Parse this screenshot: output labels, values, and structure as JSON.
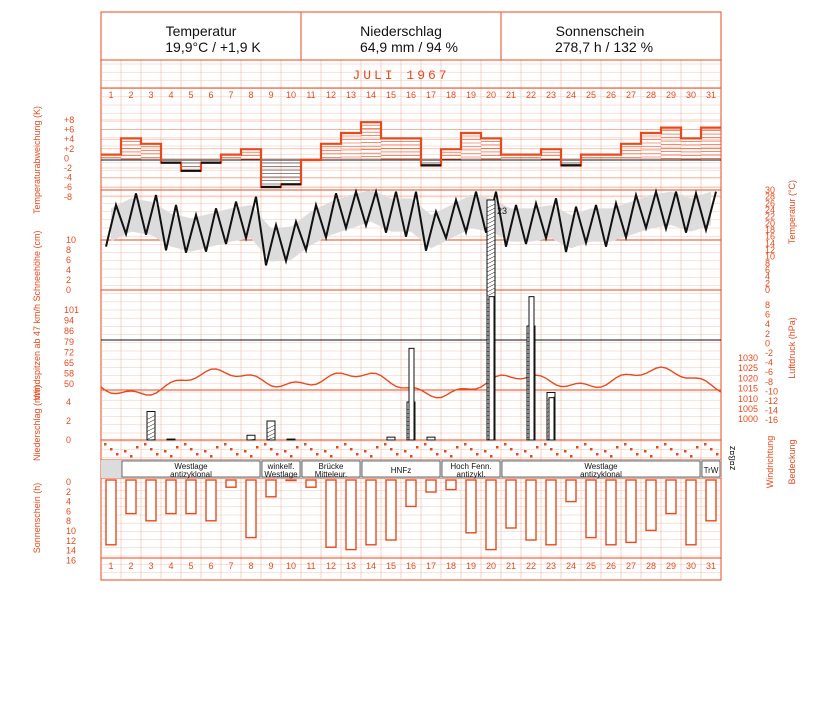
{
  "header": {
    "temperatur_title": "Temperatur",
    "temperatur_value": "19,9°C / +1,9 K",
    "niederschlag_title": "Niederschlag",
    "niederschlag_value": "64,9 mm / 94 %",
    "sonnenschein_title": "Sonnenschein",
    "sonnenschein_value": "278,7 h / 132 %"
  },
  "month_label": "JULI 1967",
  "axis_labels": {
    "temp_dev": "Temperaturabweichung (K)",
    "snow": "Schneehöhe (cm)",
    "wind": "Windspitzen ab 47 km/h",
    "precip": "Niederschlag (mm)",
    "sun": "Sonnenschein (h)",
    "temperature": "Temperatur (°C)",
    "pressure": "Luftdruck (hPa)",
    "wind_dir": "Windrichtung",
    "cloud": "Bedeckung",
    "wind_dir_marks": "z¤ß¤z"
  },
  "colors": {
    "accent": "#e8491d",
    "grid": "#f1b6a3",
    "band": "#dcdcdc",
    "text": "#111111"
  },
  "chart_data": {
    "type": "climate-diagram",
    "days": [
      1,
      2,
      3,
      4,
      5,
      6,
      7,
      8,
      9,
      10,
      11,
      12,
      13,
      14,
      15,
      16,
      17,
      18,
      19,
      20,
      21,
      22,
      23,
      24,
      25,
      26,
      27,
      28,
      29,
      30,
      31
    ],
    "temp_deviation": {
      "ticks": [
        "+8",
        "+6",
        "+4",
        "+2",
        "0",
        "-2",
        "-4",
        "-6",
        "-8"
      ],
      "values": [
        1,
        4,
        3,
        -0.5,
        -2,
        -0.5,
        1,
        2,
        -5,
        -4.5,
        0,
        3,
        5,
        7,
        4,
        4,
        -1,
        2,
        5,
        4,
        1,
        1,
        2,
        -1,
        1,
        1,
        3,
        5,
        6,
        4,
        6
      ]
    },
    "temperature": {
      "ticks": [
        "30",
        "28",
        "26",
        "24",
        "22",
        "20",
        "18",
        "16",
        "14",
        "12",
        "10",
        "8",
        "6",
        "4",
        "2",
        "0"
      ],
      "ylim": [
        0,
        30
      ],
      "extreme_label": "23"
    },
    "snow": {
      "ticks": [
        "10",
        "8",
        "6",
        "4",
        "2",
        "0"
      ]
    },
    "wind": {
      "ticks": [
        "101",
        "94",
        "86",
        "79",
        "72",
        "65",
        "58",
        "50"
      ],
      "peaks": [
        {
          "day": 16,
          "value": 79
        },
        {
          "day": 20,
          "value": 101
        },
        {
          "day": 22,
          "value": 101
        },
        {
          "day": 23,
          "value": 58
        }
      ]
    },
    "pressure": {
      "ticks": [
        "8",
        "6",
        "4",
        "2",
        "0",
        "-2",
        "-4",
        "-6",
        "-8",
        "-10",
        "-12",
        "-14",
        "-16"
      ],
      "hpa_ticks": [
        "1030",
        "1025",
        "1020",
        "1015",
        "1010",
        "1005",
        "1000"
      ]
    },
    "precipitation": {
      "ticks": [
        "4",
        "2",
        "0"
      ],
      "values": [
        0,
        0,
        3,
        0.1,
        0,
        0,
        0,
        0.5,
        2,
        0.1,
        0,
        0,
        0,
        0,
        0.3,
        4,
        0.3,
        0,
        0,
        26,
        0,
        12,
        5,
        0,
        0,
        0,
        0,
        0,
        0,
        0,
        0
      ]
    },
    "sunshine": {
      "ticks": [
        "0",
        "2",
        "4",
        "6",
        "8",
        "10",
        "12",
        "14",
        "16"
      ],
      "values": [
        13.5,
        7,
        8.5,
        7,
        7,
        8.5,
        1.5,
        12,
        3.5,
        0,
        1.5,
        14,
        14.5,
        13.5,
        12.5,
        5.5,
        2.5,
        2,
        11,
        14.5,
        10,
        12.5,
        13.5,
        4.5,
        12,
        13.5,
        13,
        10.5,
        7,
        13.5,
        8.5
      ]
    },
    "weather_types": [
      {
        "label1": "Westlage",
        "label2": "antizyklonal"
      },
      {
        "label1": "winkelf.",
        "label2": "Westlage"
      },
      {
        "label1": "Brücke",
        "label2": "Mitteleur."
      },
      {
        "label1": "HNFz",
        "label2": ""
      },
      {
        "label1": "Hoch Fenn.",
        "label2": "antizykl."
      },
      {
        "label1": "Westlage",
        "label2": "antizyklonal"
      },
      {
        "label1": "TrW",
        "label2": ""
      }
    ]
  }
}
